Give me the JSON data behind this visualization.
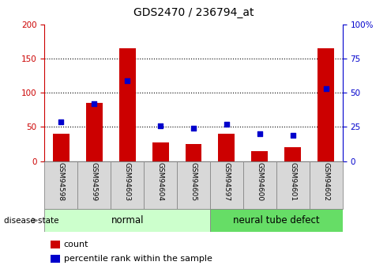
{
  "title": "GDS2470 / 236794_at",
  "categories": [
    "GSM94598",
    "GSM94599",
    "GSM94603",
    "GSM94604",
    "GSM94605",
    "GSM94597",
    "GSM94600",
    "GSM94601",
    "GSM94602"
  ],
  "count_values": [
    40,
    85,
    165,
    27,
    25,
    40,
    15,
    20,
    165
  ],
  "percentile_values": [
    29,
    42,
    59,
    26,
    24,
    27,
    20,
    19,
    53
  ],
  "left_ylim": [
    0,
    200
  ],
  "right_ylim": [
    0,
    100
  ],
  "left_yticks": [
    0,
    50,
    100,
    150,
    200
  ],
  "right_yticks": [
    0,
    25,
    50,
    75,
    100
  ],
  "right_yticklabels": [
    "0",
    "25",
    "50",
    "75",
    "100%"
  ],
  "bar_color": "#cc0000",
  "dot_color": "#0000cc",
  "normal_group_indices": [
    0,
    1,
    2,
    3,
    4
  ],
  "defect_group_indices": [
    5,
    6,
    7,
    8
  ],
  "normal_label": "normal",
  "defect_label": "neural tube defect",
  "normal_bg": "#ccffcc",
  "defect_bg": "#66dd66",
  "disease_state_label": "disease state",
  "legend_count_label": "count",
  "legend_percentile_label": "percentile rank within the sample",
  "tick_label_bg": "#d8d8d8",
  "left_axis_color": "#cc0000",
  "right_axis_color": "#0000cc",
  "bar_width": 0.5,
  "title_fontsize": 10,
  "axis_fontsize": 7.5,
  "legend_fontsize": 8,
  "group_fontsize": 8.5
}
